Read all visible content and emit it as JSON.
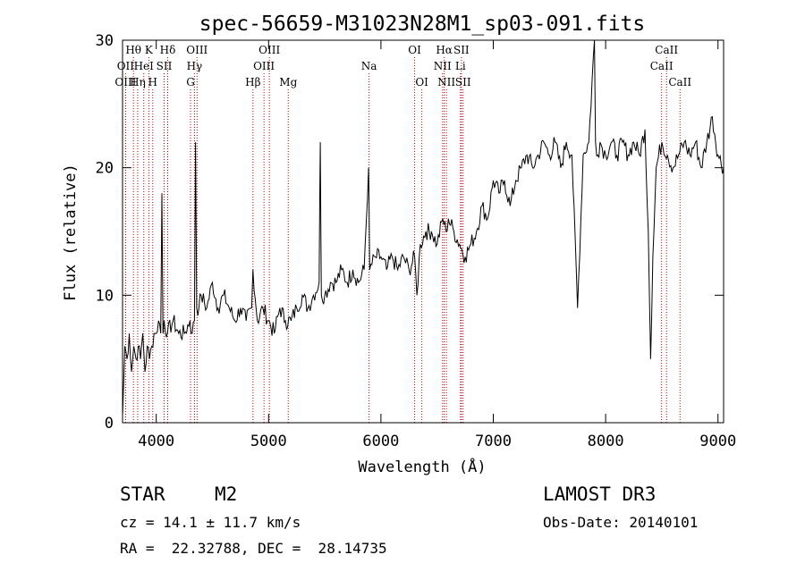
{
  "chart_data": {
    "type": "line",
    "title": "spec-56659-M31023N28M1_sp03-091.fits",
    "xlabel": "Wavelength (Å)",
    "ylabel": "Flux (relative)",
    "xlim": [
      3700,
      9050
    ],
    "ylim": [
      0,
      30
    ],
    "xticks": [
      4000,
      5000,
      6000,
      7000,
      8000,
      9000
    ],
    "yticks": [
      0,
      10,
      20,
      30
    ],
    "series": [
      {
        "name": "flux",
        "x": [
          3700,
          3720,
          3740,
          3760,
          3780,
          3800,
          3820,
          3840,
          3860,
          3880,
          3900,
          3920,
          3940,
          3960,
          3980,
          4000,
          4020,
          4040,
          4050,
          4060,
          4070,
          4100,
          4150,
          4200,
          4250,
          4300,
          4320,
          4340,
          4350,
          4360,
          4380,
          4400,
          4450,
          4500,
          4550,
          4600,
          4650,
          4700,
          4750,
          4800,
          4850,
          4861,
          4900,
          4950,
          5000,
          5050,
          5100,
          5150,
          5200,
          5250,
          5300,
          5350,
          5400,
          5450,
          5460,
          5470,
          5500,
          5550,
          5600,
          5650,
          5700,
          5750,
          5800,
          5850,
          5890,
          5900,
          5950,
          6000,
          6050,
          6100,
          6150,
          6200,
          6250,
          6300,
          6320,
          6350,
          6400,
          6450,
          6500,
          6550,
          6580,
          6600,
          6650,
          6700,
          6750,
          6800,
          6850,
          6900,
          6950,
          7000,
          7050,
          7100,
          7150,
          7200,
          7250,
          7300,
          7350,
          7400,
          7450,
          7500,
          7550,
          7600,
          7650,
          7700,
          7750,
          7800,
          7850,
          7900,
          7910,
          7930,
          7950,
          8000,
          8050,
          8100,
          8150,
          8200,
          8250,
          8300,
          8350,
          8380,
          8400,
          8420,
          8450,
          8500,
          8550,
          8600,
          8650,
          8700,
          8750,
          8800,
          8850,
          8900,
          8950,
          9000,
          9050
        ],
        "y": [
          0.5,
          6,
          5,
          7,
          4,
          6,
          5,
          6,
          5,
          7,
          4,
          6,
          5,
          6,
          7,
          7,
          8,
          7,
          18,
          7,
          8,
          7,
          8,
          7,
          7,
          8,
          7,
          8,
          22,
          9,
          9,
          10,
          9,
          11,
          9,
          10,
          9,
          8,
          9,
          8,
          9,
          12,
          8,
          9,
          8,
          7,
          9,
          8,
          8,
          9,
          10,
          9,
          10,
          11,
          22,
          10,
          10,
          11,
          11,
          12,
          11,
          12,
          11,
          12,
          20,
          12,
          13,
          13,
          12,
          13,
          12,
          13,
          12,
          13,
          10,
          14,
          15,
          15,
          14,
          16,
          15,
          16,
          15,
          14,
          13,
          14,
          15,
          17,
          16,
          19,
          18,
          19,
          17,
          19,
          20,
          21,
          20,
          21,
          22,
          21,
          22,
          20,
          22,
          21,
          9,
          21,
          22,
          30,
          22,
          21,
          22,
          21,
          22,
          21,
          22,
          21,
          22,
          21,
          23,
          15,
          5,
          13,
          20,
          22,
          21,
          20,
          21,
          22,
          21,
          22,
          20,
          22,
          24,
          21,
          20
        ]
      }
    ],
    "line_markers": [
      {
        "label": "Hθ",
        "x": 3797,
        "row": 1
      },
      {
        "label": "OII",
        "x": 3727,
        "row": 2
      },
      {
        "label": "OIII",
        "x": 3727,
        "row": 3
      },
      {
        "label": "K",
        "x": 3934,
        "row": 1
      },
      {
        "label": "HeI",
        "x": 3889,
        "row": 2
      },
      {
        "label": "Hη",
        "x": 3835,
        "row": 3
      },
      {
        "label": "SII",
        "x": 4070,
        "row": 2
      },
      {
        "label": "H",
        "x": 3969,
        "row": 3
      },
      {
        "label": "Hδ",
        "x": 4102,
        "row": 1
      },
      {
        "label": "OIII",
        "x": 4363,
        "row": 1
      },
      {
        "label": "Hγ",
        "x": 4340,
        "row": 2
      },
      {
        "label": "G",
        "x": 4305,
        "row": 3
      },
      {
        "label": "OIII",
        "x": 5007,
        "row": 1
      },
      {
        "label": "OIII",
        "x": 4959,
        "row": 2
      },
      {
        "label": "Hβ",
        "x": 4861,
        "row": 3
      },
      {
        "label": "Mg",
        "x": 5175,
        "row": 3
      },
      {
        "label": "Na",
        "x": 5894,
        "row": 2
      },
      {
        "label": "OI",
        "x": 6300,
        "row": 1
      },
      {
        "label": "OI",
        "x": 6364,
        "row": 3
      },
      {
        "label": "Hα",
        "x": 6563,
        "row": 1
      },
      {
        "label": "SII",
        "x": 6716,
        "row": 1
      },
      {
        "label": "NII",
        "x": 6548,
        "row": 2
      },
      {
        "label": "Li",
        "x": 6708,
        "row": 2
      },
      {
        "label": "NII",
        "x": 6583,
        "row": 3
      },
      {
        "label": "SII",
        "x": 6731,
        "row": 3
      },
      {
        "label": "CaII",
        "x": 8542,
        "row": 1
      },
      {
        "label": "CaII",
        "x": 8498,
        "row": 2
      },
      {
        "label": "CaII",
        "x": 8662,
        "row": 3
      }
    ]
  },
  "info": {
    "class_label": "STAR",
    "subclass_label": "M2",
    "survey_label": "LAMOST DR3",
    "cz_text": "cz = 14.1 ± 11.7 km/s",
    "obs_date_text": "Obs-Date: 20140101",
    "radec_text": "RA =  22.32788, DEC =  28.14735"
  }
}
